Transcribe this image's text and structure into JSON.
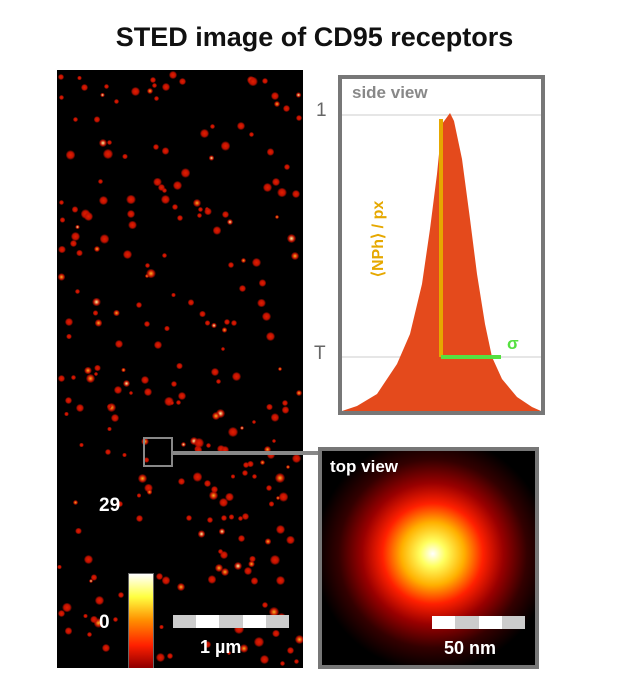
{
  "title": "STED image of CD95 receptors",
  "colorbar": {
    "max": "29",
    "min": "0",
    "colormap": "hot"
  },
  "scalebar_main": "1 µm",
  "side_view": {
    "label": "side view",
    "y_top": "1",
    "y_threshold": "T",
    "vertical_label": "⟨NPh⟩ / px",
    "width_label": "σ",
    "fill_color": "#e44a1c",
    "height_color": "#e6a800",
    "sigma_color": "#55e040"
  },
  "top_view": {
    "label": "top view",
    "scalebar": "50 nm"
  }
}
